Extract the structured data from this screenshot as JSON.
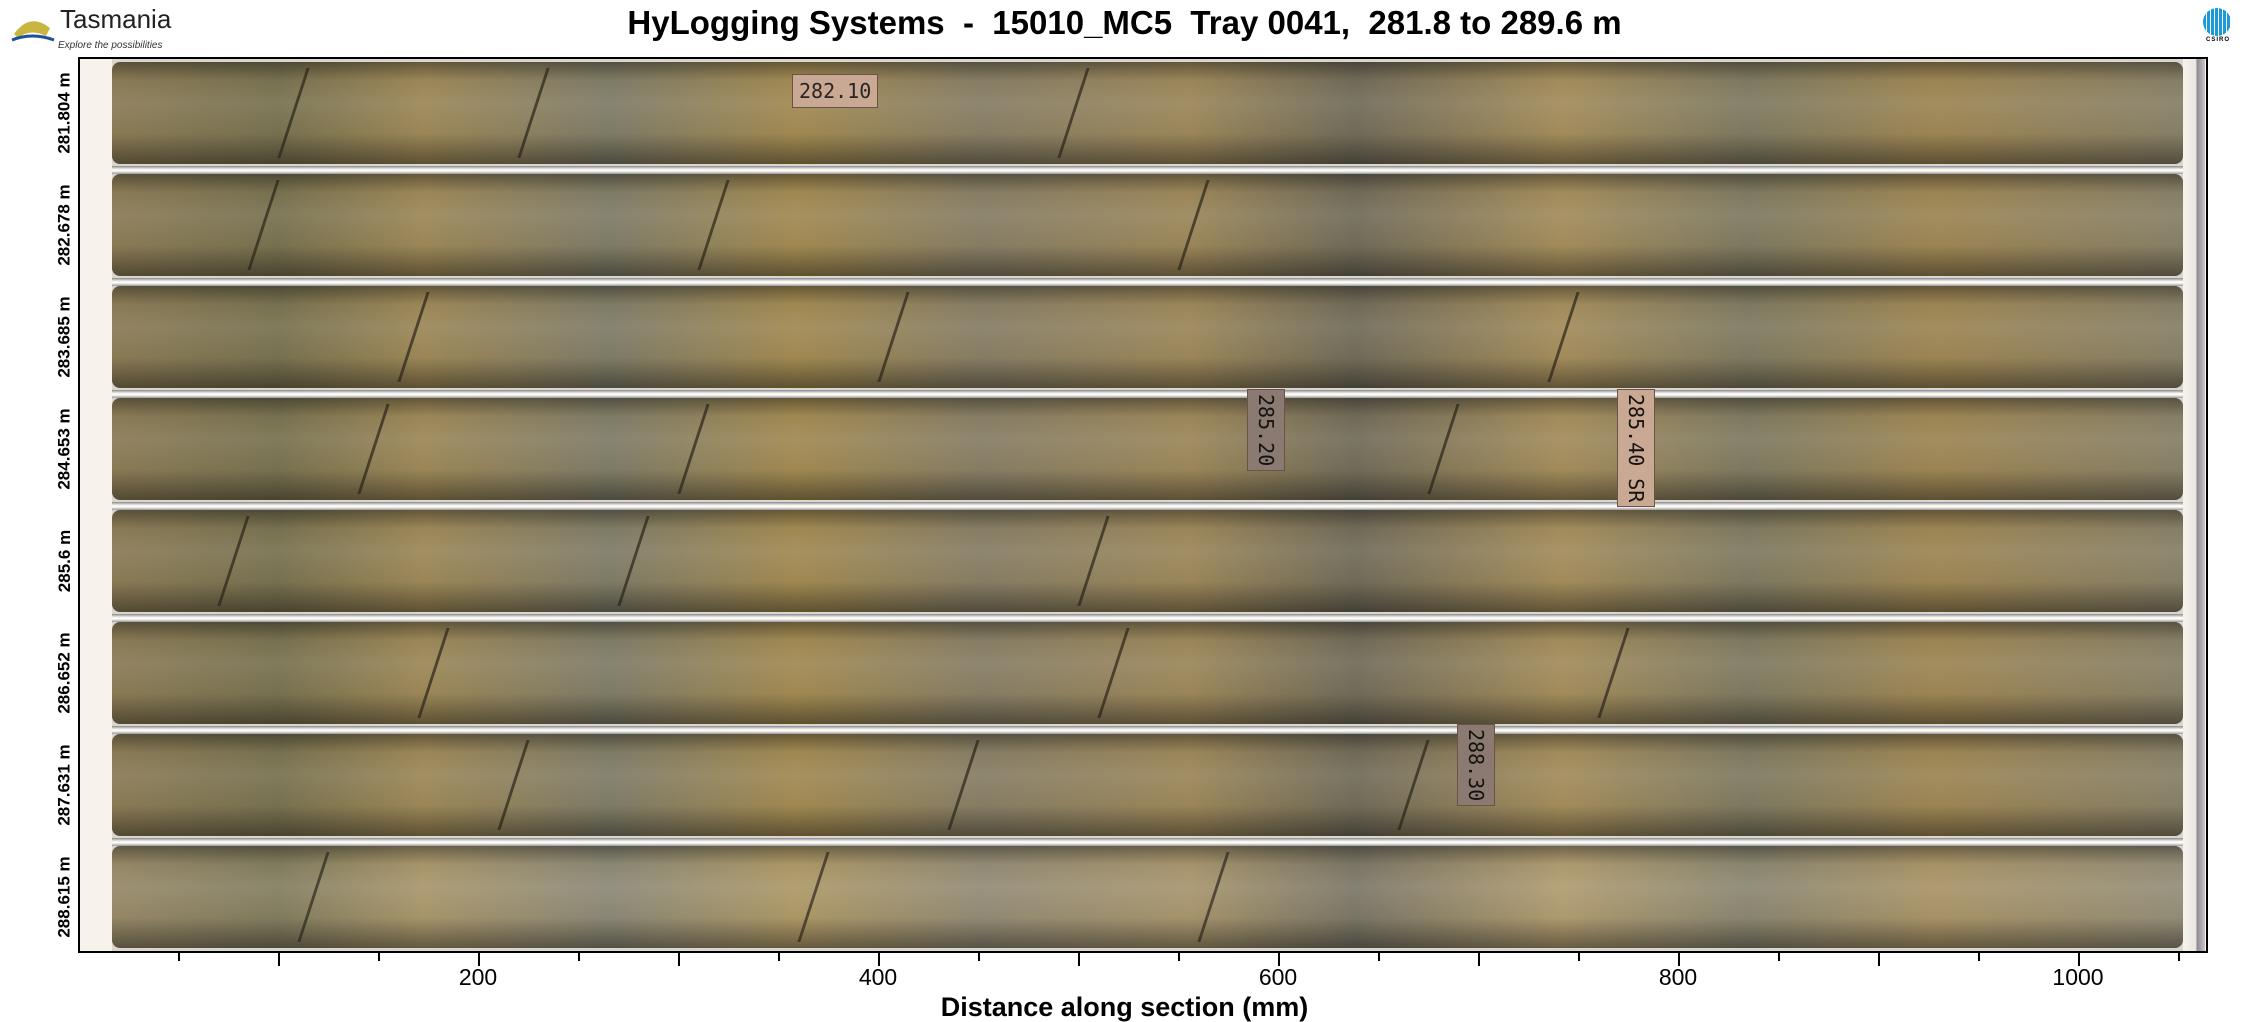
{
  "header": {
    "title": "HyLogging Systems  -  15010_MC5  Tray 0041,  281.8 to 289.6 m",
    "logo_left": {
      "text": "Tasmania",
      "tagline": "Explore the possibilities"
    },
    "logo_right": {
      "text": "CSIRO"
    }
  },
  "tray": {
    "row_depth_labels": [
      "281.804 m",
      "282.678 m",
      "283.685 m",
      "284.653 m",
      "285.6 m",
      "286.652 m",
      "287.631 m",
      "288.615 m"
    ],
    "core_tags": [
      {
        "row": 1,
        "text": "282.10"
      },
      {
        "row": 4,
        "text": "285.20"
      },
      {
        "row": 4,
        "text": "285.40 SR"
      },
      {
        "row": 7,
        "text": "288.30"
      }
    ]
  },
  "x_axis": {
    "label": "Distance along section (mm)",
    "tick_labels": [
      "200",
      "400",
      "600",
      "800",
      "1000"
    ],
    "range_mm": [
      0,
      1065
    ]
  }
}
